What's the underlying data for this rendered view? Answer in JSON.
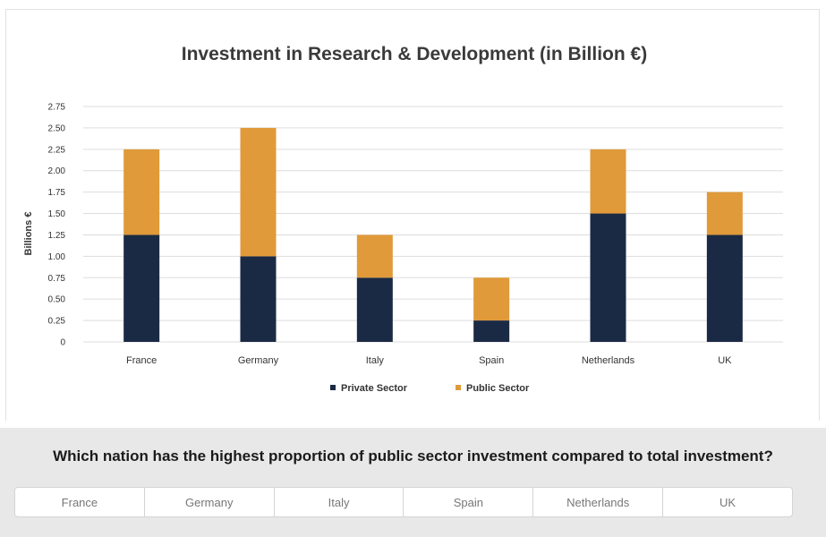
{
  "chart_data": {
    "type": "bar",
    "stacked": true,
    "title": "Investment in Research & Development (in Billion €)",
    "xlabel": "",
    "ylabel": "Billions €",
    "ylim": [
      0,
      2.75
    ],
    "yticks": [
      "0",
      "0.25",
      "0.50",
      "0.75",
      "1.00",
      "1.25",
      "1.50",
      "1.75",
      "2.00",
      "2.25",
      "2.50",
      "2.75"
    ],
    "grid": true,
    "legend_position": "bottom",
    "categories": [
      "France",
      "Germany",
      "Italy",
      "Spain",
      "Netherlands",
      "UK"
    ],
    "series": [
      {
        "name": "Private Sector",
        "color": "#1b2a44",
        "values": [
          1.25,
          1.0,
          0.75,
          0.25,
          1.5,
          1.25
        ]
      },
      {
        "name": "Public Sector",
        "color": "#e09a3a",
        "values": [
          1.0,
          1.5,
          0.5,
          0.5,
          0.75,
          0.5
        ]
      }
    ]
  },
  "question": {
    "text": "Which nation has the highest proportion of public sector investment compared to total investment?",
    "options": [
      "France",
      "Germany",
      "Italy",
      "Spain",
      "Netherlands",
      "UK"
    ]
  }
}
